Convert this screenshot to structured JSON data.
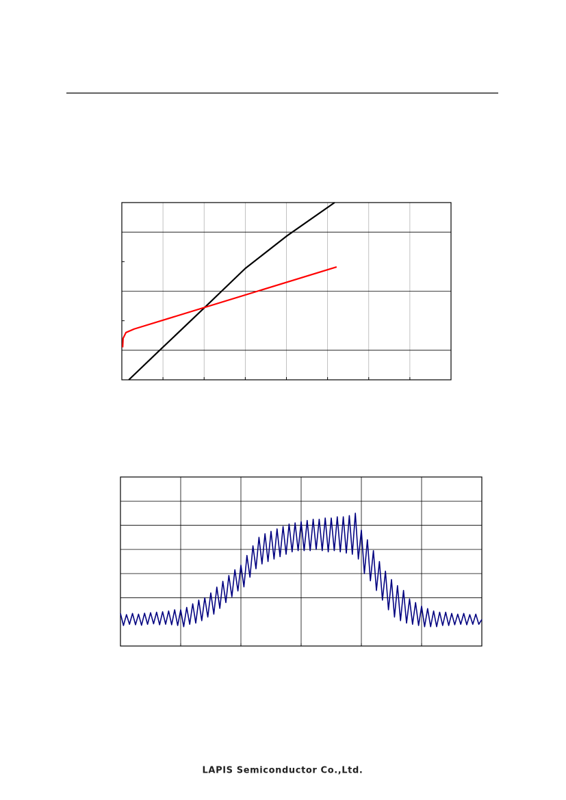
{
  "footer": "LAPIS Semiconductor Co.,Ltd.",
  "chart_data": [
    {
      "type": "line",
      "xlim": [
        0,
        8
      ],
      "ylim": [
        0,
        6
      ],
      "xticks": [
        1,
        2,
        3,
        4,
        5,
        6,
        7
      ],
      "yticks": [
        1,
        3,
        5
      ],
      "yminorticks": [
        2,
        4
      ],
      "grid": true,
      "series": [
        {
          "color": "#000000",
          "x": [
            0.17,
            0.92,
            2,
            3,
            4,
            5.17
          ],
          "values": [
            0,
            1,
            2.43,
            3.77,
            4.86,
            6
          ]
        },
        {
          "color": "#ff0000",
          "x": [
            0.02,
            0.03,
            0.1,
            0.3,
            5.22
          ],
          "values": [
            1.1,
            1.4,
            1.6,
            1.72,
            3.82
          ]
        }
      ]
    },
    {
      "type": "line",
      "xlim": [
        0,
        6
      ],
      "ylim": [
        0,
        7
      ],
      "xticks": [
        1,
        2,
        3,
        4,
        5
      ],
      "yticks": [
        2,
        3,
        4,
        5,
        6
      ],
      "grid": true,
      "series": [
        {
          "color": "#000080",
          "x": [
            0,
            0.05,
            0.1,
            0.15,
            0.2,
            0.25,
            0.3,
            0.35,
            0.4,
            0.45,
            0.5,
            0.55,
            0.6,
            0.65,
            0.7,
            0.75,
            0.8,
            0.85,
            0.9,
            0.95,
            1,
            1.05,
            1.1,
            1.15,
            1.2,
            1.25,
            1.3,
            1.35,
            1.4,
            1.45,
            1.5,
            1.55,
            1.6,
            1.65,
            1.7,
            1.75,
            1.8,
            1.85,
            1.9,
            1.95,
            2,
            2.05,
            2.1,
            2.15,
            2.2,
            2.25,
            2.3,
            2.35,
            2.4,
            2.45,
            2.5,
            2.55,
            2.6,
            2.65,
            2.7,
            2.75,
            2.8,
            2.85,
            2.9,
            2.95,
            3,
            3.05,
            3.1,
            3.15,
            3.2,
            3.25,
            3.3,
            3.35,
            3.4,
            3.45,
            3.5,
            3.55,
            3.6,
            3.65,
            3.7,
            3.75,
            3.8,
            3.85,
            3.9,
            3.95,
            4,
            4.05,
            4.1,
            4.15,
            4.2,
            4.25,
            4.3,
            4.35,
            4.4,
            4.45,
            4.5,
            4.55,
            4.6,
            4.65,
            4.7,
            4.75,
            4.8,
            4.85,
            4.9,
            4.95,
            5,
            5.05,
            5.1,
            5.15,
            5.2,
            5.25,
            5.3,
            5.35,
            5.4,
            5.45,
            5.5,
            5.55,
            5.6,
            5.65,
            5.7,
            5.75,
            5.8,
            5.85,
            5.9,
            5.95,
            6
          ],
          "values": [
            1.35,
            0.85,
            1.3,
            0.9,
            1.35,
            0.88,
            1.32,
            0.86,
            1.36,
            0.9,
            1.38,
            0.92,
            1.4,
            0.88,
            1.42,
            0.9,
            1.45,
            0.88,
            1.5,
            0.85,
            1.5,
            0.8,
            1.6,
            0.9,
            1.75,
            0.95,
            1.9,
            1.05,
            2.0,
            1.2,
            2.2,
            1.32,
            2.44,
            1.56,
            2.68,
            1.8,
            2.92,
            2.04,
            3.16,
            2.28,
            3.35,
            2.45,
            3.75,
            2.85,
            4.15,
            3.2,
            4.5,
            3.4,
            4.65,
            3.5,
            4.75,
            3.6,
            4.85,
            3.7,
            4.95,
            3.8,
            5.05,
            3.9,
            5.1,
            3.95,
            5.15,
            3.95,
            5.2,
            3.95,
            5.25,
            4.0,
            5.25,
            3.95,
            5.3,
            3.9,
            5.3,
            3.95,
            5.35,
            3.9,
            5.35,
            3.85,
            5.4,
            3.8,
            5.5,
            3.6,
            4.8,
            3.0,
            4.4,
            2.7,
            3.95,
            2.3,
            3.5,
            1.9,
            3.1,
            1.5,
            2.75,
            1.2,
            2.5,
            1.05,
            2.3,
            0.95,
            1.95,
            0.9,
            1.8,
            0.85,
            1.65,
            0.8,
            1.55,
            0.8,
            1.45,
            0.8,
            1.4,
            0.85,
            1.4,
            0.85,
            1.35,
            0.88,
            1.32,
            0.9,
            1.35,
            0.88,
            1.3,
            0.9,
            1.32,
            0.9,
            1.1
          ]
        }
      ]
    }
  ]
}
